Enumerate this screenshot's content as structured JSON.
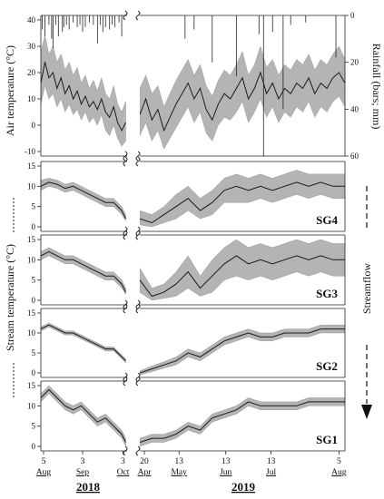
{
  "chart_data": [
    {
      "type": "line",
      "panel": "air",
      "ylabel_left": "Air temperature (°C)",
      "ylabel_right": "Rainfall (bars; mm)",
      "ylim": [
        -10,
        40
      ],
      "yticks": [
        "-10",
        "0",
        "10",
        "20",
        "30",
        "40"
      ],
      "rain_ylim": [
        60,
        0
      ],
      "rain_ticks": [
        "0",
        "20",
        "40",
        "60"
      ],
      "series": [
        {
          "segments": [
            {
              "x": [
                0,
                3,
                6,
                9,
                12,
                15,
                18,
                21,
                24,
                27,
                30,
                33,
                36,
                39,
                42,
                45,
                48,
                51,
                54,
                57,
                60,
                63
              ],
              "mean": [
                16,
                24,
                18,
                20,
                14,
                18,
                12,
                15,
                10,
                13,
                8,
                11,
                7,
                9,
                6,
                10,
                5,
                3,
                7,
                1,
                -2,
                1
              ],
              "lo": [
                8,
                15,
                10,
                12,
                7,
                10,
                5,
                8,
                4,
                6,
                2,
                5,
                1,
                3,
                0,
                4,
                -2,
                -4,
                0,
                -5,
                -8,
                -6
              ],
              "hi": [
                28,
                34,
                27,
                30,
                24,
                27,
                21,
                24,
                19,
                22,
                16,
                19,
                14,
                17,
                13,
                18,
                12,
                10,
                15,
                8,
                5,
                9
              ]
            },
            {
              "x": [
                0,
                4,
                8,
                12,
                16,
                20,
                24,
                28,
                32,
                36,
                40,
                44,
                48,
                52,
                56,
                60,
                64,
                68,
                72,
                76,
                80,
                84,
                88,
                92,
                96,
                100,
                104,
                108,
                112,
                116,
                120,
                124,
                128,
                132,
                136
              ],
              "mean": [
                4,
                10,
                2,
                6,
                -2,
                3,
                8,
                12,
                16,
                10,
                14,
                6,
                2,
                8,
                12,
                10,
                14,
                18,
                10,
                14,
                20,
                12,
                16,
                10,
                14,
                12,
                16,
                14,
                18,
                12,
                16,
                14,
                18,
                20,
                16
              ],
              "lo": [
                -4,
                1,
                -6,
                -2,
                -9,
                -5,
                -1,
                3,
                7,
                1,
                5,
                -3,
                -6,
                0,
                3,
                2,
                5,
                9,
                1,
                5,
                10,
                3,
                7,
                1,
                5,
                3,
                7,
                5,
                9,
                3,
                7,
                5,
                9,
                11,
                7
              ],
              "hi": [
                14,
                19,
                12,
                15,
                7,
                12,
                17,
                21,
                25,
                19,
                23,
                15,
                11,
                17,
                21,
                19,
                23,
                28,
                19,
                23,
                30,
                22,
                25,
                19,
                23,
                21,
                25,
                23,
                27,
                21,
                25,
                23,
                27,
                30,
                25
              ]
            }
          ]
        }
      ],
      "rainfall": {
        "seg1": [
          [
            1,
            6
          ],
          [
            3,
            9
          ],
          [
            6,
            4
          ],
          [
            8,
            10
          ],
          [
            9,
            14
          ],
          [
            11,
            4
          ],
          [
            13,
            9
          ],
          [
            16,
            7
          ],
          [
            17,
            5
          ],
          [
            19,
            4
          ],
          [
            21,
            6
          ],
          [
            24,
            3
          ],
          [
            27,
            5
          ],
          [
            29,
            4
          ],
          [
            31,
            7
          ],
          [
            33,
            5
          ],
          [
            36,
            3
          ],
          [
            39,
            4
          ],
          [
            42,
            12
          ],
          [
            44,
            4
          ],
          [
            46,
            7
          ],
          [
            48,
            5
          ],
          [
            51,
            6
          ],
          [
            53,
            4
          ],
          [
            55,
            5
          ],
          [
            58,
            3
          ],
          [
            60,
            9
          ]
        ],
        "seg2": [
          [
            30,
            10
          ],
          [
            36,
            6
          ],
          [
            48,
            20
          ],
          [
            64,
            26
          ],
          [
            79,
            8
          ],
          [
            82,
            60
          ],
          [
            88,
            7
          ],
          [
            95,
            40
          ],
          [
            100,
            4
          ],
          [
            110,
            3
          ],
          [
            130,
            18
          ]
        ]
      }
    },
    {
      "type": "line",
      "panel": "stream",
      "site": "SG4",
      "ylim": [
        0,
        15
      ],
      "yticks": [
        "0",
        "5",
        "10",
        "15"
      ],
      "segments": [
        {
          "x": [
            0,
            6,
            12,
            18,
            24,
            30,
            36,
            42,
            48,
            54,
            60,
            63
          ],
          "mean": [
            10,
            11,
            10.5,
            9.5,
            10,
            9,
            8,
            7,
            6,
            6,
            4,
            2
          ],
          "lo": [
            9,
            10,
            9.5,
            8.5,
            9,
            8,
            7,
            6,
            5,
            5,
            3,
            1.5
          ],
          "hi": [
            11.5,
            12,
            11.5,
            10.5,
            11,
            10,
            9,
            8,
            7,
            7,
            5,
            3
          ]
        },
        {
          "x": [
            0,
            8,
            16,
            24,
            32,
            40,
            48,
            56,
            64,
            72,
            80,
            88,
            96,
            104,
            112,
            120,
            128,
            136
          ],
          "mean": [
            2,
            1,
            3,
            5,
            7,
            4,
            6,
            9,
            10,
            9,
            10,
            9,
            10,
            11,
            10,
            11,
            10,
            10
          ],
          "lo": [
            0.5,
            0,
            1,
            2,
            4,
            2,
            3,
            6,
            6,
            6,
            7,
            6,
            7,
            8,
            7,
            8,
            7,
            7
          ],
          "hi": [
            4,
            3,
            5,
            8,
            10,
            7,
            9,
            12,
            13,
            12,
            13,
            12,
            13,
            14,
            13,
            13,
            13,
            13
          ]
        }
      ]
    },
    {
      "type": "line",
      "panel": "stream",
      "site": "SG3",
      "ylim": [
        0,
        15
      ],
      "yticks": [
        "0",
        "5",
        "10",
        "15"
      ],
      "segments": [
        {
          "x": [
            0,
            6,
            12,
            18,
            24,
            30,
            36,
            42,
            48,
            54,
            60,
            63
          ],
          "mean": [
            11,
            12,
            11,
            10,
            10,
            9,
            8,
            7,
            6,
            6,
            4,
            2
          ],
          "lo": [
            10,
            11,
            10,
            9,
            9,
            8,
            7,
            6,
            5,
            5,
            3,
            1.5
          ],
          "hi": [
            12,
            13,
            12,
            11,
            11,
            10,
            9,
            8,
            7,
            7,
            5,
            3
          ]
        },
        {
          "x": [
            0,
            8,
            16,
            24,
            32,
            40,
            48,
            56,
            64,
            72,
            80,
            88,
            96,
            104,
            112,
            120,
            128,
            136
          ],
          "mean": [
            5,
            1,
            2,
            4,
            7,
            3,
            6,
            9,
            11,
            9,
            10,
            9,
            10,
            11,
            10,
            11,
            10,
            10
          ],
          "lo": [
            2,
            0,
            0.5,
            1,
            3,
            1,
            2,
            5,
            6,
            5,
            6,
            5,
            6,
            7,
            6,
            7,
            6,
            6
          ],
          "hi": [
            8,
            3,
            4,
            7,
            11,
            6,
            10,
            13,
            15,
            13,
            14,
            13,
            14,
            15,
            14,
            15,
            14,
            14
          ]
        }
      ]
    },
    {
      "type": "line",
      "panel": "stream",
      "site": "SG2",
      "ylim": [
        0,
        15
      ],
      "yticks": [
        "0",
        "5",
        "10",
        "15"
      ],
      "segments": [
        {
          "x": [
            0,
            6,
            12,
            18,
            24,
            30,
            36,
            42,
            48,
            54,
            60,
            63
          ],
          "mean": [
            11,
            12,
            11,
            10,
            10,
            9,
            8,
            7,
            6,
            6,
            4,
            3
          ],
          "lo": [
            10.5,
            11.5,
            10.5,
            9.5,
            9.5,
            8.5,
            7.5,
            6.5,
            5.5,
            5.5,
            3.5,
            2.5
          ],
          "hi": [
            11.5,
            12.5,
            11.5,
            10.5,
            10.5,
            9.5,
            8.5,
            7.5,
            6.5,
            6.5,
            4.5,
            3.5
          ]
        },
        {
          "x": [
            0,
            8,
            16,
            24,
            32,
            40,
            48,
            56,
            64,
            72,
            80,
            88,
            96,
            104,
            112,
            120,
            128,
            136
          ],
          "mean": [
            0,
            1,
            2,
            3,
            5,
            4,
            6,
            8,
            9,
            10,
            9,
            9,
            10,
            10,
            10,
            11,
            11,
            11
          ],
          "lo": [
            -0.5,
            0.3,
            1.2,
            2,
            4,
            3,
            5,
            7,
            8,
            9,
            8,
            8,
            9,
            9,
            9,
            10,
            10,
            10
          ],
          "hi": [
            0.5,
            1.7,
            2.8,
            4,
            6,
            5,
            7,
            9,
            10,
            11,
            10,
            10,
            11,
            11,
            11,
            12,
            12,
            12
          ]
        }
      ]
    },
    {
      "type": "line",
      "panel": "stream",
      "site": "SG1",
      "ylim": [
        0,
        15
      ],
      "yticks": [
        "0",
        "5",
        "10",
        "15"
      ],
      "segments": [
        {
          "x": [
            0,
            6,
            12,
            18,
            24,
            30,
            36,
            42,
            48,
            54,
            60,
            63
          ],
          "mean": [
            12,
            14,
            12,
            10,
            9,
            10,
            8,
            6,
            7,
            5,
            3,
            1
          ],
          "lo": [
            11,
            13,
            11,
            9,
            8,
            9,
            7,
            5,
            6,
            4,
            2,
            0
          ],
          "hi": [
            13,
            15,
            13,
            11,
            10,
            11,
            9,
            7,
            8,
            6,
            4,
            2
          ]
        },
        {
          "x": [
            0,
            8,
            16,
            24,
            32,
            40,
            48,
            56,
            64,
            72,
            80,
            88,
            96,
            104,
            112,
            120,
            128,
            136
          ],
          "mean": [
            1,
            2,
            2,
            3,
            5,
            4,
            7,
            8,
            9,
            11,
            10,
            10,
            10,
            10,
            11,
            11,
            11,
            11
          ],
          "lo": [
            0,
            1,
            1,
            2,
            4,
            3,
            6,
            7,
            8,
            10,
            9,
            9,
            9,
            9,
            10,
            10,
            10,
            10
          ],
          "hi": [
            2,
            3,
            3,
            4,
            6,
            5,
            8,
            9,
            10,
            12,
            11,
            11,
            11,
            11,
            12,
            12,
            12,
            12
          ]
        }
      ]
    }
  ],
  "shared": {
    "stream_ylabel": "Stream temperature (°C)",
    "streamflow_label": "Streamflow",
    "x_2018": [
      {
        "day": "5",
        "month": "Aug"
      },
      {
        "day": "3",
        "month": "Sep"
      },
      {
        "day": "3",
        "month": "Oct"
      }
    ],
    "x_2019": [
      {
        "day": "20",
        "month": "Apr"
      },
      {
        "day": "13",
        "month": "May"
      },
      {
        "day": "13",
        "month": "Jun"
      },
      {
        "day": "13",
        "month": "Jul"
      },
      {
        "day": "5",
        "month": "Aug"
      }
    ],
    "year_2018": "2018",
    "year_2019": "2019",
    "colors": {
      "band": "#b4b4b4",
      "line": "#1a1a1a",
      "axis": "#222222"
    }
  }
}
